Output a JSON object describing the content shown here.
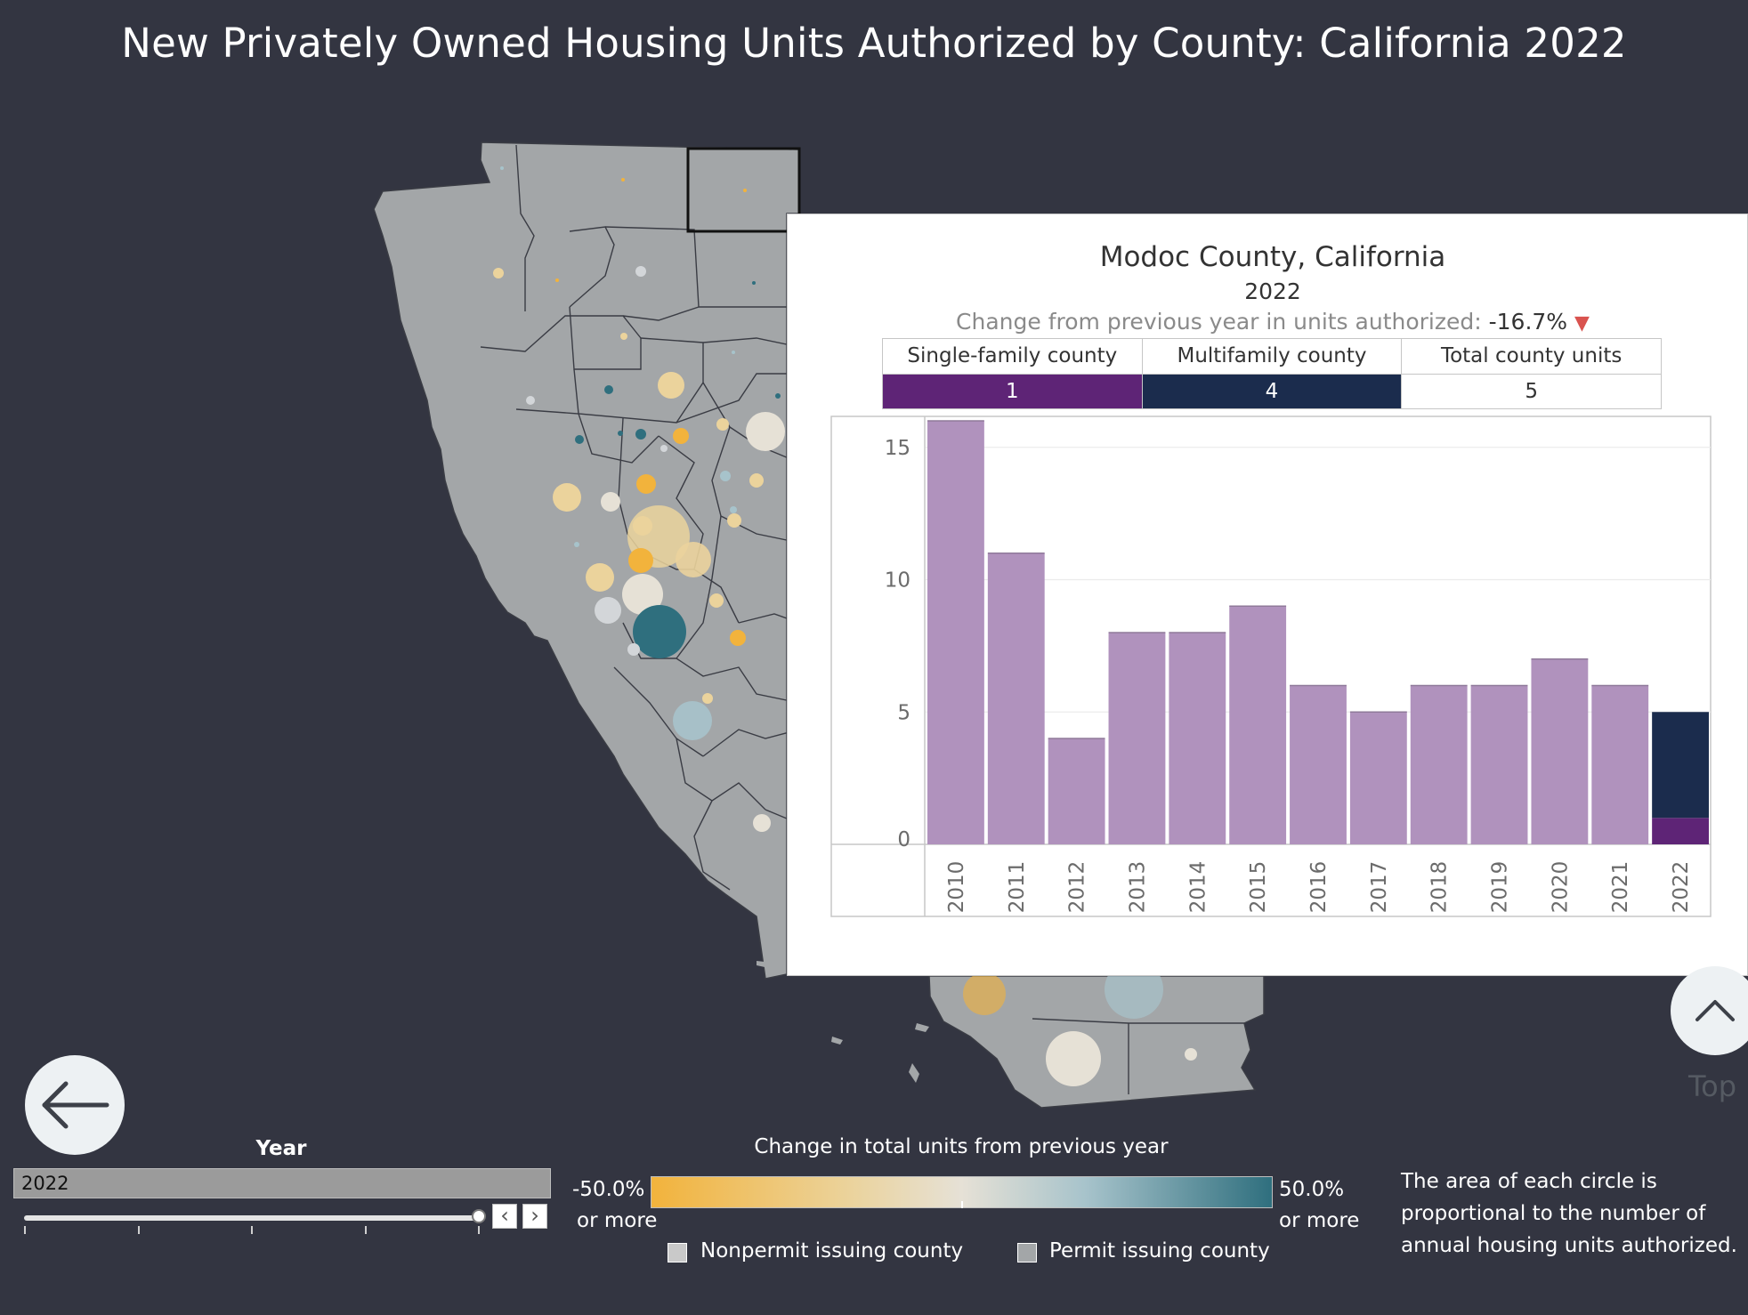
{
  "page": {
    "title": "New Privately Owned Housing Units Authorized by County: California 2022"
  },
  "tooltip": {
    "county": "Modoc County, California",
    "year": "2022",
    "change_label": "Change from previous year in units authorized:",
    "change_value": "-16.7%",
    "change_arrow": "▼",
    "table_headers": [
      "Single-family county",
      "Multifamily county",
      "Total county units"
    ],
    "table_values": [
      "1",
      "4",
      "5"
    ]
  },
  "chart_data": {
    "type": "bar",
    "title": "Modoc County, California",
    "xlabel": "",
    "ylabel": "",
    "categories": [
      "2010",
      "2011",
      "2012",
      "2013",
      "2014",
      "2015",
      "2016",
      "2017",
      "2018",
      "2019",
      "2020",
      "2021",
      "2022"
    ],
    "values": [
      16,
      11,
      4,
      8,
      8,
      9,
      6,
      5,
      6,
      6,
      7,
      6,
      5
    ],
    "stacked_2022": {
      "single_family": 1,
      "multifamily": 4
    },
    "yticks": [
      0,
      5,
      10,
      15
    ],
    "ylim": [
      0,
      16
    ],
    "colors": {
      "history": "#b092bd",
      "single_family": "#5e2476",
      "multifamily": "#1b2c4d"
    },
    "grid": true
  },
  "controls": {
    "year_label": "Year",
    "year_value": "2022",
    "prev_glyph": "‹",
    "next_glyph": "›",
    "back_glyph": "←",
    "top_label": "Top"
  },
  "legend": {
    "title": "Change in total units from previous year",
    "min_line1": "-50.0%",
    "min_line2": "or more",
    "max_line1": "50.0%",
    "max_line2": "or more",
    "nonpermit": "Nonpermit issuing county",
    "permit": "Permit issuing county",
    "nonpermit_color": "#c9c9c9",
    "permit_color": "#a3a6a8",
    "note": "The area of each circle is proportional to the number of annual housing units authorized."
  },
  "colors": {
    "background": "#333541",
    "map_fill": "#a3a6a8",
    "circle_colors": [
      "#f2b33c",
      "#ebd39c",
      "#e6e1d6",
      "#d3d6d9",
      "#a7c3cb",
      "#2f6f7e"
    ]
  }
}
